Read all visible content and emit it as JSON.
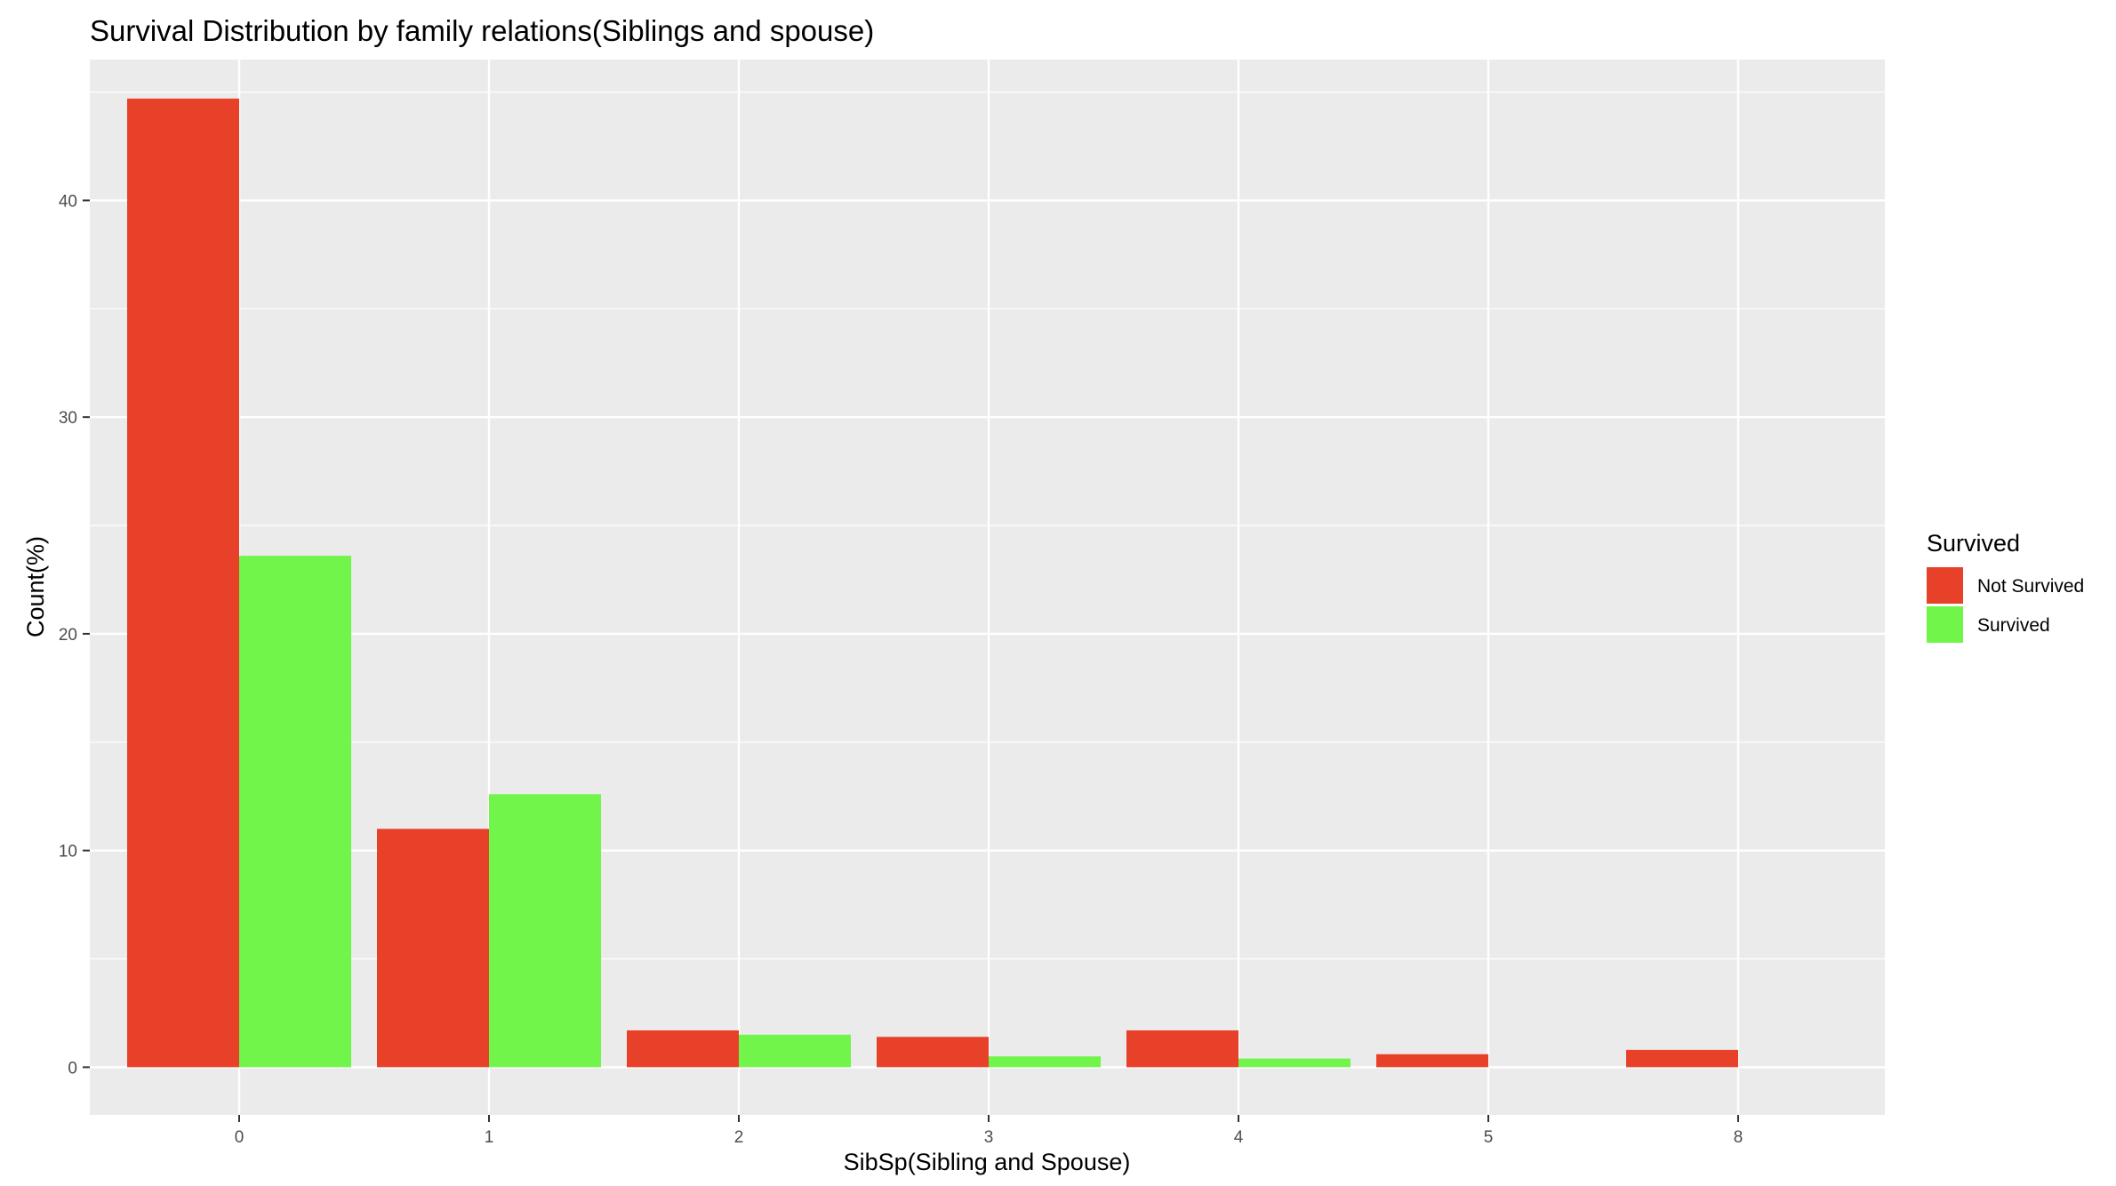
{
  "chart_data": {
    "type": "bar",
    "title": "Survival Distribution by family relations(Siblings and spouse)",
    "xlabel": "SibSp(Sibling and Spouse)",
    "ylabel": "Count(%)",
    "categories": [
      "0",
      "1",
      "2",
      "3",
      "4",
      "5",
      "8"
    ],
    "yticks": [
      "0",
      "10",
      "20",
      "30",
      "40"
    ],
    "ylim": [
      -2.2,
      46.5
    ],
    "grid": true,
    "legend": {
      "title": "Survived",
      "position": "right"
    },
    "series": [
      {
        "name": "Not Survived",
        "color": "#E8412A",
        "values": [
          44.7,
          11.0,
          1.7,
          1.4,
          1.7,
          0.6,
          0.8
        ]
      },
      {
        "name": "Survived",
        "color": "#71F54A",
        "values": [
          23.6,
          12.6,
          1.5,
          0.5,
          0.4,
          0,
          0
        ]
      }
    ],
    "panel_background": "#EBEBEB",
    "grid_color": "#FFFFFF"
  }
}
